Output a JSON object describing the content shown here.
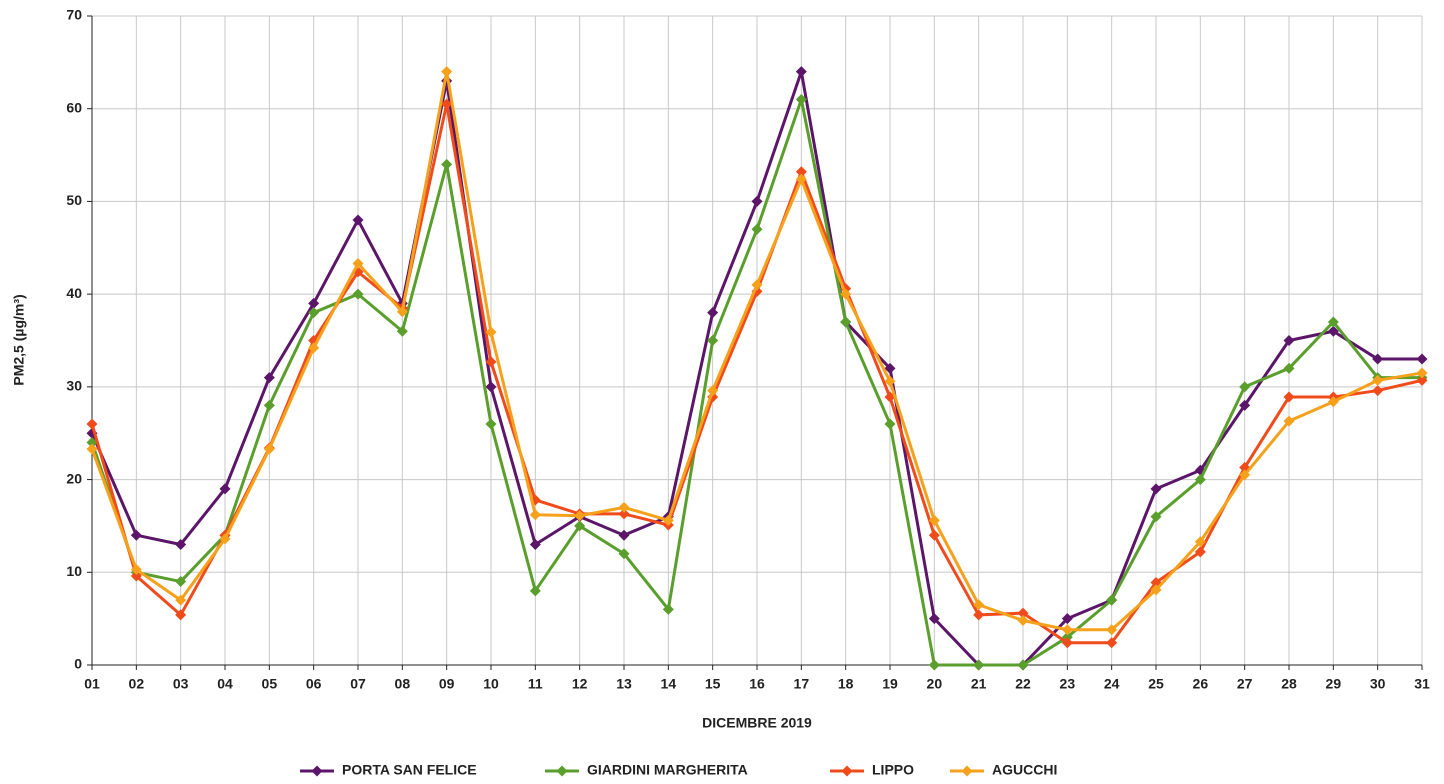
{
  "chart_data": {
    "type": "line",
    "x_label": "DICEMBRE 2019",
    "y_label": "PM2,5 (µg/m³)",
    "categories": [
      "01",
      "02",
      "03",
      "04",
      "05",
      "06",
      "07",
      "08",
      "09",
      "10",
      "11",
      "12",
      "13",
      "14",
      "15",
      "16",
      "17",
      "18",
      "19",
      "20",
      "21",
      "22",
      "23",
      "24",
      "25",
      "26",
      "27",
      "28",
      "29",
      "30",
      "31"
    ],
    "ylim": [
      0,
      70
    ],
    "yticks": [
      0,
      10,
      20,
      30,
      40,
      50,
      60,
      70
    ],
    "grid": true,
    "legend": "bottom",
    "series": [
      {
        "name": "PORTA SAN FELICE",
        "color": "#5b1569",
        "values": [
          25,
          14,
          13,
          19,
          31,
          39,
          48,
          39,
          63,
          30,
          13,
          16,
          14,
          16,
          38,
          50,
          64,
          37,
          32,
          5,
          0,
          0,
          5,
          7,
          19,
          21,
          28,
          35,
          36,
          33,
          33
        ]
      },
      {
        "name": "GIARDINI MARGHERITA",
        "color": "#5a9e2c",
        "values": [
          24,
          10,
          9,
          14,
          28,
          38,
          40,
          36,
          54,
          26,
          8,
          15,
          12,
          6,
          35,
          47,
          61,
          37,
          26,
          0,
          0,
          0,
          3,
          7,
          16,
          20,
          30,
          32,
          37,
          31,
          31
        ]
      },
      {
        "name": "LIPPO",
        "color": "#f04b1b",
        "values": [
          26,
          9.6,
          5.4,
          14,
          23.4,
          35,
          42.4,
          38.5,
          60.5,
          32.7,
          17.8,
          16.3,
          16.3,
          15.1,
          28.9,
          40.3,
          53.2,
          40.6,
          28.9,
          14,
          5.4,
          5.6,
          2.4,
          2.4,
          8.9,
          12.2,
          21.3,
          28.9,
          28.9,
          29.6,
          30.7
        ]
      },
      {
        "name": "AGUCCHI",
        "color": "#f6a11c",
        "values": [
          23.3,
          10.3,
          7,
          13.6,
          23.3,
          34.2,
          43.3,
          38.1,
          64,
          35.9,
          16.2,
          16.1,
          17,
          15.6,
          29.6,
          41,
          52.4,
          40,
          30.6,
          15.6,
          6.5,
          4.8,
          3.8,
          3.8,
          8.1,
          13.3,
          20.5,
          26.3,
          28.4,
          30.7,
          31.5
        ]
      }
    ]
  }
}
